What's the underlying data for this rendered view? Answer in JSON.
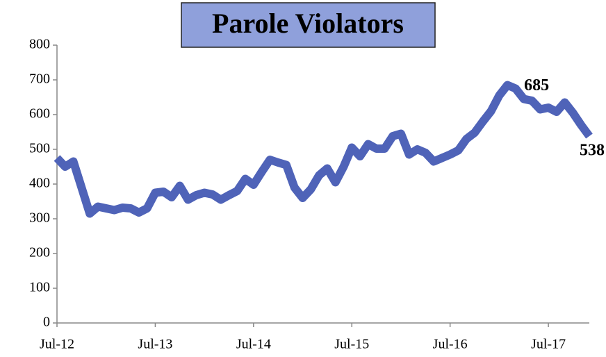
{
  "chart_data": {
    "type": "line",
    "title": "Parole Violators",
    "categories": [
      "Jul-12",
      null,
      null,
      null,
      null,
      null,
      null,
      null,
      null,
      null,
      null,
      null,
      "Jul-13",
      null,
      null,
      null,
      null,
      null,
      null,
      null,
      null,
      null,
      null,
      null,
      "Jul-14",
      null,
      null,
      null,
      null,
      null,
      null,
      null,
      null,
      null,
      null,
      null,
      "Jul-15",
      null,
      null,
      null,
      null,
      null,
      null,
      null,
      null,
      null,
      null,
      null,
      "Jul-16",
      null,
      null,
      null,
      null,
      null,
      null,
      null,
      null,
      null,
      null,
      null,
      "Jul-17",
      null,
      null,
      null,
      null,
      null
    ],
    "series": [
      {
        "name": "Parole Violators",
        "color": "#4f63b8",
        "values": [
          475,
          450,
          465,
          390,
          315,
          335,
          330,
          325,
          332,
          330,
          318,
          330,
          375,
          378,
          362,
          395,
          355,
          368,
          375,
          370,
          355,
          368,
          380,
          415,
          398,
          435,
          470,
          462,
          455,
          390,
          360,
          385,
          425,
          445,
          405,
          450,
          505,
          480,
          515,
          502,
          502,
          538,
          545,
          485,
          500,
          490,
          465,
          475,
          485,
          497,
          530,
          548,
          580,
          610,
          655,
          685,
          675,
          645,
          640,
          615,
          620,
          608,
          635,
          605,
          570,
          538
        ]
      }
    ],
    "ylim": [
      0,
      800
    ],
    "yticks": [
      0,
      100,
      200,
      300,
      400,
      500,
      600,
      700,
      800
    ],
    "grid": false
  }
}
